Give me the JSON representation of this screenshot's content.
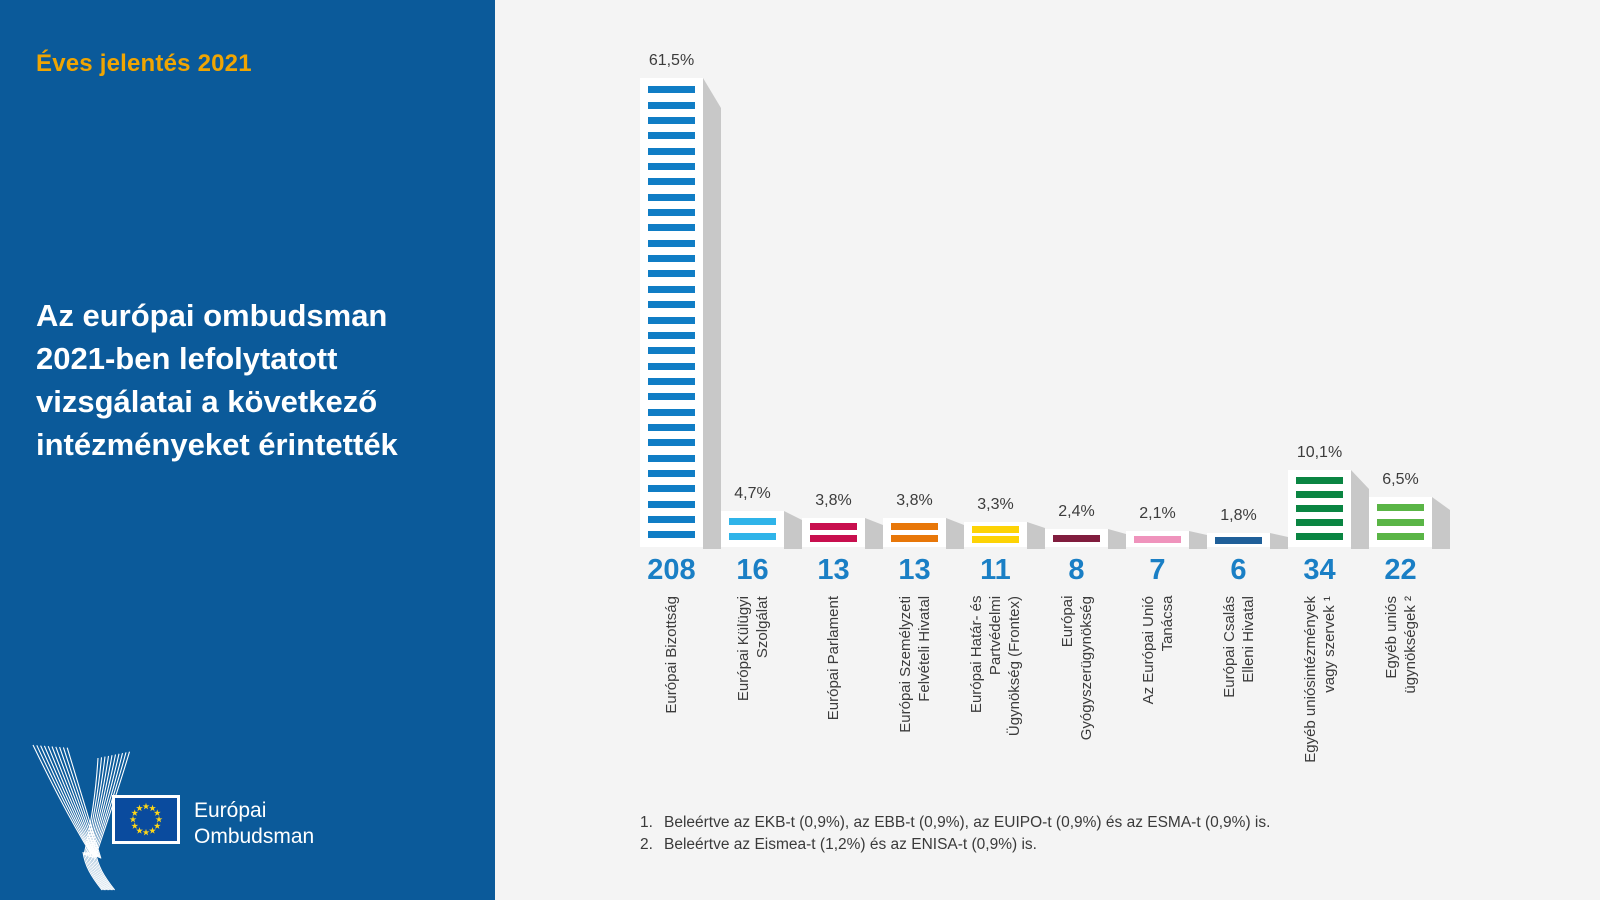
{
  "left_panel": {
    "report_label": "Éves jelentés 2021",
    "title_lines": [
      "Az európai ombudsman",
      "2021-ben lefolytatott",
      "vizsgálatai a következő",
      "intézményeket érintették"
    ],
    "logo": {
      "org_line1": "Európai",
      "org_line2": "Ombudsman"
    },
    "colors": {
      "panel_bg": "#0b5a9a",
      "accent_yellow": "#f0a502",
      "flag_blue": "#0a4b9e",
      "star_yellow": "#ffd617"
    }
  },
  "chart_data": {
    "type": "bar",
    "orientation": "vertical",
    "categories": [
      "Európai Bizottság",
      "Európai Külügyi\nSzolgálat",
      "Európai Parlament",
      "Európai Személyzeti\nFelvételi Hivatal",
      "Európai Határ- és\nPartvédelmi\nÜgynökség (Frontex)",
      "Európai\nGyógyszerügynökség",
      "Az Európai Unió\nTanácsa",
      "Európai Csalás\nElleni Hivatal",
      "Egyéb uniósintézmények\nvagy szervek ¹",
      "Egyéb uniós\nügynökségek ²"
    ],
    "values": [
      61.5,
      4.7,
      3.8,
      3.8,
      3.3,
      2.4,
      2.1,
      1.8,
      10.1,
      6.5
    ],
    "value_labels": [
      "61,5%",
      "4,7%",
      "3,8%",
      "3,8%",
      "3,3%",
      "2,4%",
      "2,1%",
      "1,8%",
      "10,1%",
      "6,5%"
    ],
    "counts": [
      208,
      16,
      13,
      13,
      11,
      8,
      7,
      6,
      34,
      22
    ],
    "bar_colors": [
      "#107dc5",
      "#2fb4e9",
      "#c80f4e",
      "#e87709",
      "#fdd305",
      "#811d3e",
      "#ef93bc",
      "#1f5f99",
      "#0a8542",
      "#5ab546"
    ],
    "ylim": [
      0,
      65
    ],
    "grid": false,
    "legend": null,
    "shadow_color": "#c8c8c8",
    "count_color": "#1a7fc5",
    "footnotes": [
      {
        "marker": "1.",
        "text": "Beleértve az EKB-t (0,9%), az EBB-t (0,9%), az EUIPO-t (0,9%) és az ESMA-t (0,9%) is."
      },
      {
        "marker": "2.",
        "text": "Beleértve az Eismea-t (1,2%) és az ENISA-t (0,9%) is."
      }
    ]
  }
}
